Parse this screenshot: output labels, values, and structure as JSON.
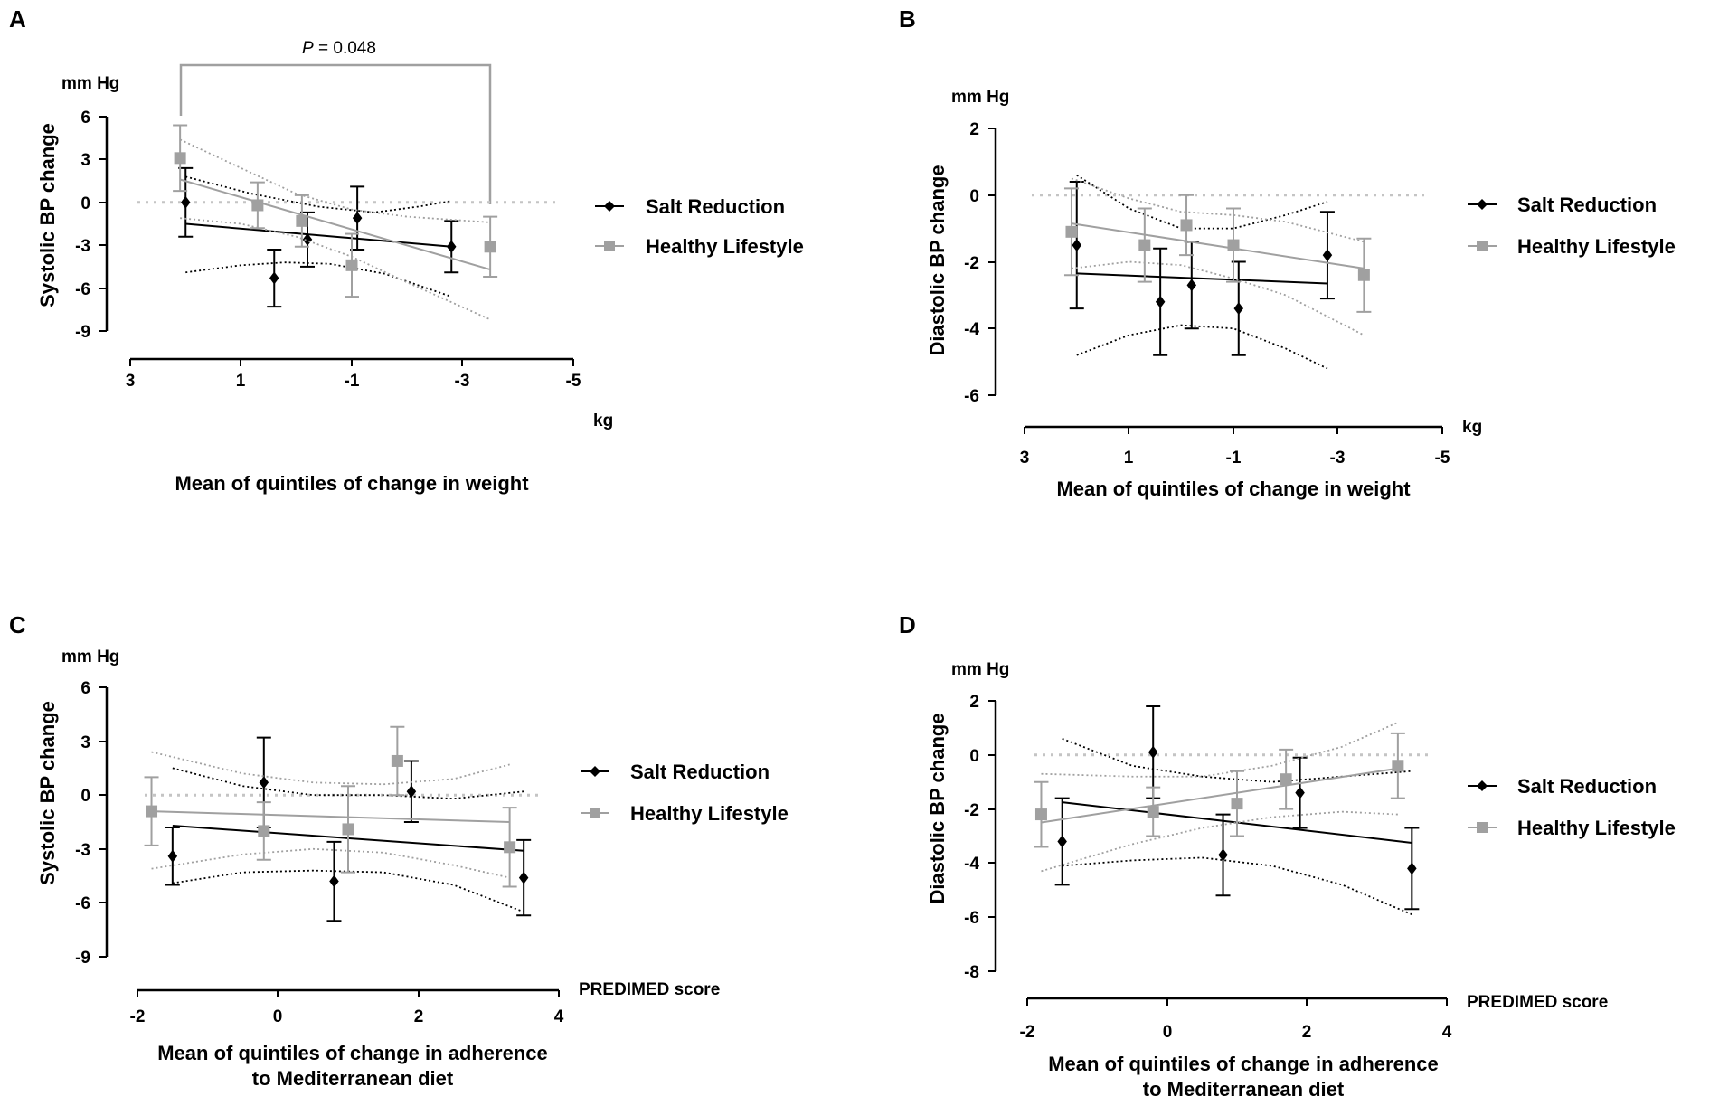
{
  "colors": {
    "salt": "#000000",
    "healthy": "#a0a0a0",
    "axis": "#000000",
    "bracket": "#a0a0a0"
  },
  "legend": {
    "salt": "Salt Reduction",
    "healthy": "Healthy Lifestyle"
  },
  "chart_data": [
    {
      "panel": "A",
      "type": "scatter",
      "unit_label": "mm Hg",
      "ylabel": "Systolic BP change",
      "xlabel": [
        "Mean of quintiles of change in weight"
      ],
      "x_unit": "kg",
      "xlim": [
        3,
        -5
      ],
      "xticks": [
        3,
        1,
        -1,
        -3,
        -5
      ],
      "ylim": [
        -9,
        6
      ],
      "yticks": [
        6,
        3,
        0,
        -3,
        -6,
        -9
      ],
      "annotation": {
        "prefix": "P",
        "text": " = 0.048",
        "x1": 2.0,
        "x2": -3.5
      },
      "series": [
        {
          "name": "Salt Reduction",
          "key": "salt",
          "marker": "diamond",
          "points": [
            {
              "x": 2.0,
              "y": 0.0,
              "lo": -2.4,
              "hi": 2.4
            },
            {
              "x": 0.4,
              "y": -5.3,
              "lo": -7.3,
              "hi": -3.3
            },
            {
              "x": -0.2,
              "y": -2.6,
              "lo": -4.5,
              "hi": -0.7
            },
            {
              "x": -1.1,
              "y": -1.1,
              "lo": -3.3,
              "hi": 1.1
            },
            {
              "x": -2.8,
              "y": -3.1,
              "lo": -4.9,
              "hi": -1.3
            }
          ],
          "fit": {
            "x": [
              2.0,
              -2.8
            ],
            "y": [
              -1.5,
              -3.1
            ]
          },
          "band_upper": {
            "x": [
              2.0,
              0.8,
              -0.4,
              -1.4,
              -2.2,
              -2.8
            ],
            "y": [
              1.8,
              0.6,
              -0.3,
              -0.7,
              -0.3,
              0.1
            ]
          },
          "band_lower": {
            "x": [
              2.0,
              1.0,
              0.2,
              -0.6,
              -1.6,
              -2.8
            ],
            "y": [
              -4.9,
              -4.4,
              -4.2,
              -4.3,
              -5.0,
              -6.6
            ]
          }
        },
        {
          "name": "Healthy Lifestyle",
          "key": "healthy",
          "marker": "square",
          "points": [
            {
              "x": 2.1,
              "y": 3.1,
              "lo": 0.8,
              "hi": 5.4
            },
            {
              "x": 0.7,
              "y": -0.2,
              "lo": -1.8,
              "hi": 1.4
            },
            {
              "x": -0.1,
              "y": -1.3,
              "lo": -3.1,
              "hi": 0.5
            },
            {
              "x": -1.0,
              "y": -4.4,
              "lo": -6.6,
              "hi": -2.2
            },
            {
              "x": -3.5,
              "y": -3.1,
              "lo": -5.2,
              "hi": -1.0
            }
          ],
          "fit": {
            "x": [
              2.1,
              -3.5
            ],
            "y": [
              1.6,
              -4.7
            ]
          },
          "band_upper": {
            "x": [
              2.1,
              1.0,
              0.0,
              -1.0,
              -2.0,
              -3.5
            ],
            "y": [
              4.4,
              2.4,
              0.6,
              -0.5,
              -1.0,
              -1.4
            ]
          },
          "band_lower": {
            "x": [
              2.1,
              1.0,
              0.0,
              -1.0,
              -2.0,
              -3.5
            ],
            "y": [
              -1.1,
              -1.5,
              -2.4,
              -3.8,
              -5.6,
              -8.2
            ]
          }
        }
      ]
    },
    {
      "panel": "B",
      "type": "scatter",
      "unit_label": "mm Hg",
      "ylabel": "Diastolic BP change",
      "xlabel": [
        "Mean of quintiles of change in weight"
      ],
      "x_unit": "kg",
      "xlim": [
        3,
        -5
      ],
      "xticks": [
        3,
        1,
        -1,
        -3,
        -5
      ],
      "ylim": [
        -6,
        2
      ],
      "yticks": [
        2,
        0,
        -2,
        -4,
        -6
      ],
      "series": [
        {
          "name": "Salt Reduction",
          "key": "salt",
          "marker": "diamond",
          "points": [
            {
              "x": 2.0,
              "y": -1.5,
              "lo": -3.4,
              "hi": 0.4
            },
            {
              "x": 0.4,
              "y": -3.2,
              "lo": -4.8,
              "hi": -1.6
            },
            {
              "x": -0.2,
              "y": -2.7,
              "lo": -4.0,
              "hi": -1.4
            },
            {
              "x": -1.1,
              "y": -3.4,
              "lo": -4.8,
              "hi": -2.0
            },
            {
              "x": -2.8,
              "y": -1.8,
              "lo": -3.1,
              "hi": -0.5
            }
          ],
          "fit": {
            "x": [
              2.0,
              -2.8
            ],
            "y": [
              -2.35,
              -2.65
            ]
          },
          "band_upper": {
            "x": [
              2.0,
              1.0,
              0.0,
              -1.0,
              -2.0,
              -2.8
            ],
            "y": [
              0.6,
              -0.4,
              -1.0,
              -1.0,
              -0.6,
              -0.2
            ]
          },
          "band_lower": {
            "x": [
              2.0,
              1.0,
              0.0,
              -1.0,
              -2.0,
              -2.8
            ],
            "y": [
              -4.8,
              -4.2,
              -3.9,
              -4.0,
              -4.6,
              -5.2
            ]
          }
        },
        {
          "name": "Healthy Lifestyle",
          "key": "healthy",
          "marker": "square",
          "points": [
            {
              "x": 2.1,
              "y": -1.1,
              "lo": -2.4,
              "hi": 0.2
            },
            {
              "x": 0.7,
              "y": -1.5,
              "lo": -2.6,
              "hi": -0.4
            },
            {
              "x": -0.1,
              "y": -0.9,
              "lo": -1.8,
              "hi": 0.0
            },
            {
              "x": -1.0,
              "y": -1.5,
              "lo": -2.6,
              "hi": -0.4
            },
            {
              "x": -3.5,
              "y": -2.4,
              "lo": -3.5,
              "hi": -1.3
            }
          ],
          "fit": {
            "x": [
              2.1,
              -3.5
            ],
            "y": [
              -0.85,
              -2.2
            ]
          },
          "band_upper": {
            "x": [
              2.1,
              1.0,
              0.0,
              -1.0,
              -2.0,
              -3.5
            ],
            "y": [
              0.5,
              -0.1,
              -0.5,
              -0.6,
              -0.8,
              -1.4
            ]
          },
          "band_lower": {
            "x": [
              2.1,
              1.0,
              0.0,
              -1.0,
              -2.0,
              -3.5
            ],
            "y": [
              -2.2,
              -2.0,
              -2.1,
              -2.5,
              -3.0,
              -4.2
            ]
          }
        }
      ]
    },
    {
      "panel": "C",
      "type": "scatter",
      "unit_label": "mm Hg",
      "ylabel": "Systolic BP change",
      "xlabel": [
        "Mean of quintiles of change in adherence",
        "to Mediterranean diet"
      ],
      "x_unit": "PREDIMED score",
      "xlim": [
        -2,
        4
      ],
      "xticks": [
        -2,
        0,
        2,
        4
      ],
      "ylim": [
        -9,
        6
      ],
      "yticks": [
        6,
        3,
        0,
        -3,
        -6,
        -9
      ],
      "series": [
        {
          "name": "Salt Reduction",
          "key": "salt",
          "marker": "diamond",
          "points": [
            {
              "x": -1.5,
              "y": -3.4,
              "lo": -5.0,
              "hi": -1.8
            },
            {
              "x": -0.2,
              "y": 0.7,
              "lo": -1.8,
              "hi": 3.2
            },
            {
              "x": 0.8,
              "y": -4.8,
              "lo": -7.0,
              "hi": -2.6
            },
            {
              "x": 1.9,
              "y": 0.2,
              "lo": -1.5,
              "hi": 1.9
            },
            {
              "x": 3.5,
              "y": -4.6,
              "lo": -6.7,
              "hi": -2.5
            }
          ],
          "fit": {
            "x": [
              -1.5,
              3.5
            ],
            "y": [
              -1.7,
              -3.1
            ]
          },
          "band_upper": {
            "x": [
              -1.5,
              -0.5,
              0.5,
              1.5,
              2.5,
              3.5
            ],
            "y": [
              1.5,
              0.5,
              0.0,
              0.0,
              -0.2,
              0.2
            ]
          },
          "band_lower": {
            "x": [
              -1.5,
              -0.5,
              0.5,
              1.5,
              2.5,
              3.5
            ],
            "y": [
              -4.9,
              -4.3,
              -4.2,
              -4.3,
              -5.0,
              -6.5
            ]
          }
        },
        {
          "name": "Healthy Lifestyle",
          "key": "healthy",
          "marker": "square",
          "points": [
            {
              "x": -1.8,
              "y": -0.9,
              "lo": -2.8,
              "hi": 1.0
            },
            {
              "x": -0.2,
              "y": -2.0,
              "lo": -3.6,
              "hi": -0.4
            },
            {
              "x": 1.0,
              "y": -1.9,
              "lo": -4.3,
              "hi": 0.5
            },
            {
              "x": 1.7,
              "y": 1.9,
              "lo": 0.0,
              "hi": 3.8
            },
            {
              "x": 3.3,
              "y": -2.9,
              "lo": -5.1,
              "hi": -0.7
            }
          ],
          "fit": {
            "x": [
              -1.8,
              3.3
            ],
            "y": [
              -0.9,
              -1.5
            ]
          },
          "band_upper": {
            "x": [
              -1.8,
              -0.5,
              0.5,
              1.5,
              2.5,
              3.3
            ],
            "y": [
              2.4,
              1.2,
              0.7,
              0.6,
              0.9,
              1.7
            ]
          },
          "band_lower": {
            "x": [
              -1.8,
              -0.5,
              0.5,
              1.5,
              2.5,
              3.3
            ],
            "y": [
              -4.1,
              -3.3,
              -3.0,
              -3.2,
              -3.9,
              -4.6
            ]
          }
        }
      ]
    },
    {
      "panel": "D",
      "type": "scatter",
      "unit_label": "mm Hg",
      "ylabel": "Diastolic BP change",
      "xlabel": [
        "Mean of quintiles of change in adherence",
        "to Mediterranean diet"
      ],
      "x_unit": "PREDIMED score",
      "xlim": [
        -2,
        4
      ],
      "xticks": [
        -2,
        0,
        2,
        4
      ],
      "ylim": [
        -8,
        2
      ],
      "yticks": [
        2,
        0,
        -2,
        -4,
        -6,
        -8
      ],
      "series": [
        {
          "name": "Salt Reduction",
          "key": "salt",
          "marker": "diamond",
          "points": [
            {
              "x": -1.5,
              "y": -3.2,
              "lo": -4.8,
              "hi": -1.6
            },
            {
              "x": -0.2,
              "y": 0.1,
              "lo": -1.6,
              "hi": 1.8
            },
            {
              "x": 0.8,
              "y": -3.7,
              "lo": -5.2,
              "hi": -2.2
            },
            {
              "x": 1.9,
              "y": -1.4,
              "lo": -2.7,
              "hi": -0.1
            },
            {
              "x": 3.5,
              "y": -4.2,
              "lo": -5.7,
              "hi": -2.7
            }
          ],
          "fit": {
            "x": [
              -1.5,
              3.5
            ],
            "y": [
              -1.75,
              -3.25
            ]
          },
          "band_upper": {
            "x": [
              -1.5,
              -0.5,
              0.5,
              1.5,
              2.5,
              3.5
            ],
            "y": [
              0.6,
              -0.4,
              -0.8,
              -1.0,
              -0.8,
              -0.6
            ]
          },
          "band_lower": {
            "x": [
              -1.5,
              -0.5,
              0.5,
              1.5,
              2.5,
              3.5
            ],
            "y": [
              -4.1,
              -3.9,
              -3.8,
              -4.1,
              -4.8,
              -5.9
            ]
          }
        },
        {
          "name": "Healthy Lifestyle",
          "key": "healthy",
          "marker": "square",
          "points": [
            {
              "x": -1.8,
              "y": -2.2,
              "lo": -3.4,
              "hi": -1.0
            },
            {
              "x": -0.2,
              "y": -2.1,
              "lo": -3.0,
              "hi": -1.2
            },
            {
              "x": 1.0,
              "y": -1.8,
              "lo": -3.0,
              "hi": -0.6
            },
            {
              "x": 1.7,
              "y": -0.9,
              "lo": -2.0,
              "hi": 0.2
            },
            {
              "x": 3.3,
              "y": -0.4,
              "lo": -1.6,
              "hi": 0.8
            }
          ],
          "fit": {
            "x": [
              -1.8,
              3.3
            ],
            "y": [
              -2.5,
              -0.5
            ]
          },
          "band_upper": {
            "x": [
              -1.8,
              -0.5,
              0.5,
              1.5,
              2.5,
              3.3
            ],
            "y": [
              -0.7,
              -0.8,
              -0.8,
              -0.4,
              0.3,
              1.2
            ]
          },
          "band_lower": {
            "x": [
              -1.8,
              -0.5,
              0.5,
              1.5,
              2.5,
              3.3
            ],
            "y": [
              -4.3,
              -3.3,
              -2.7,
              -2.3,
              -2.1,
              -2.2
            ]
          }
        }
      ]
    }
  ]
}
